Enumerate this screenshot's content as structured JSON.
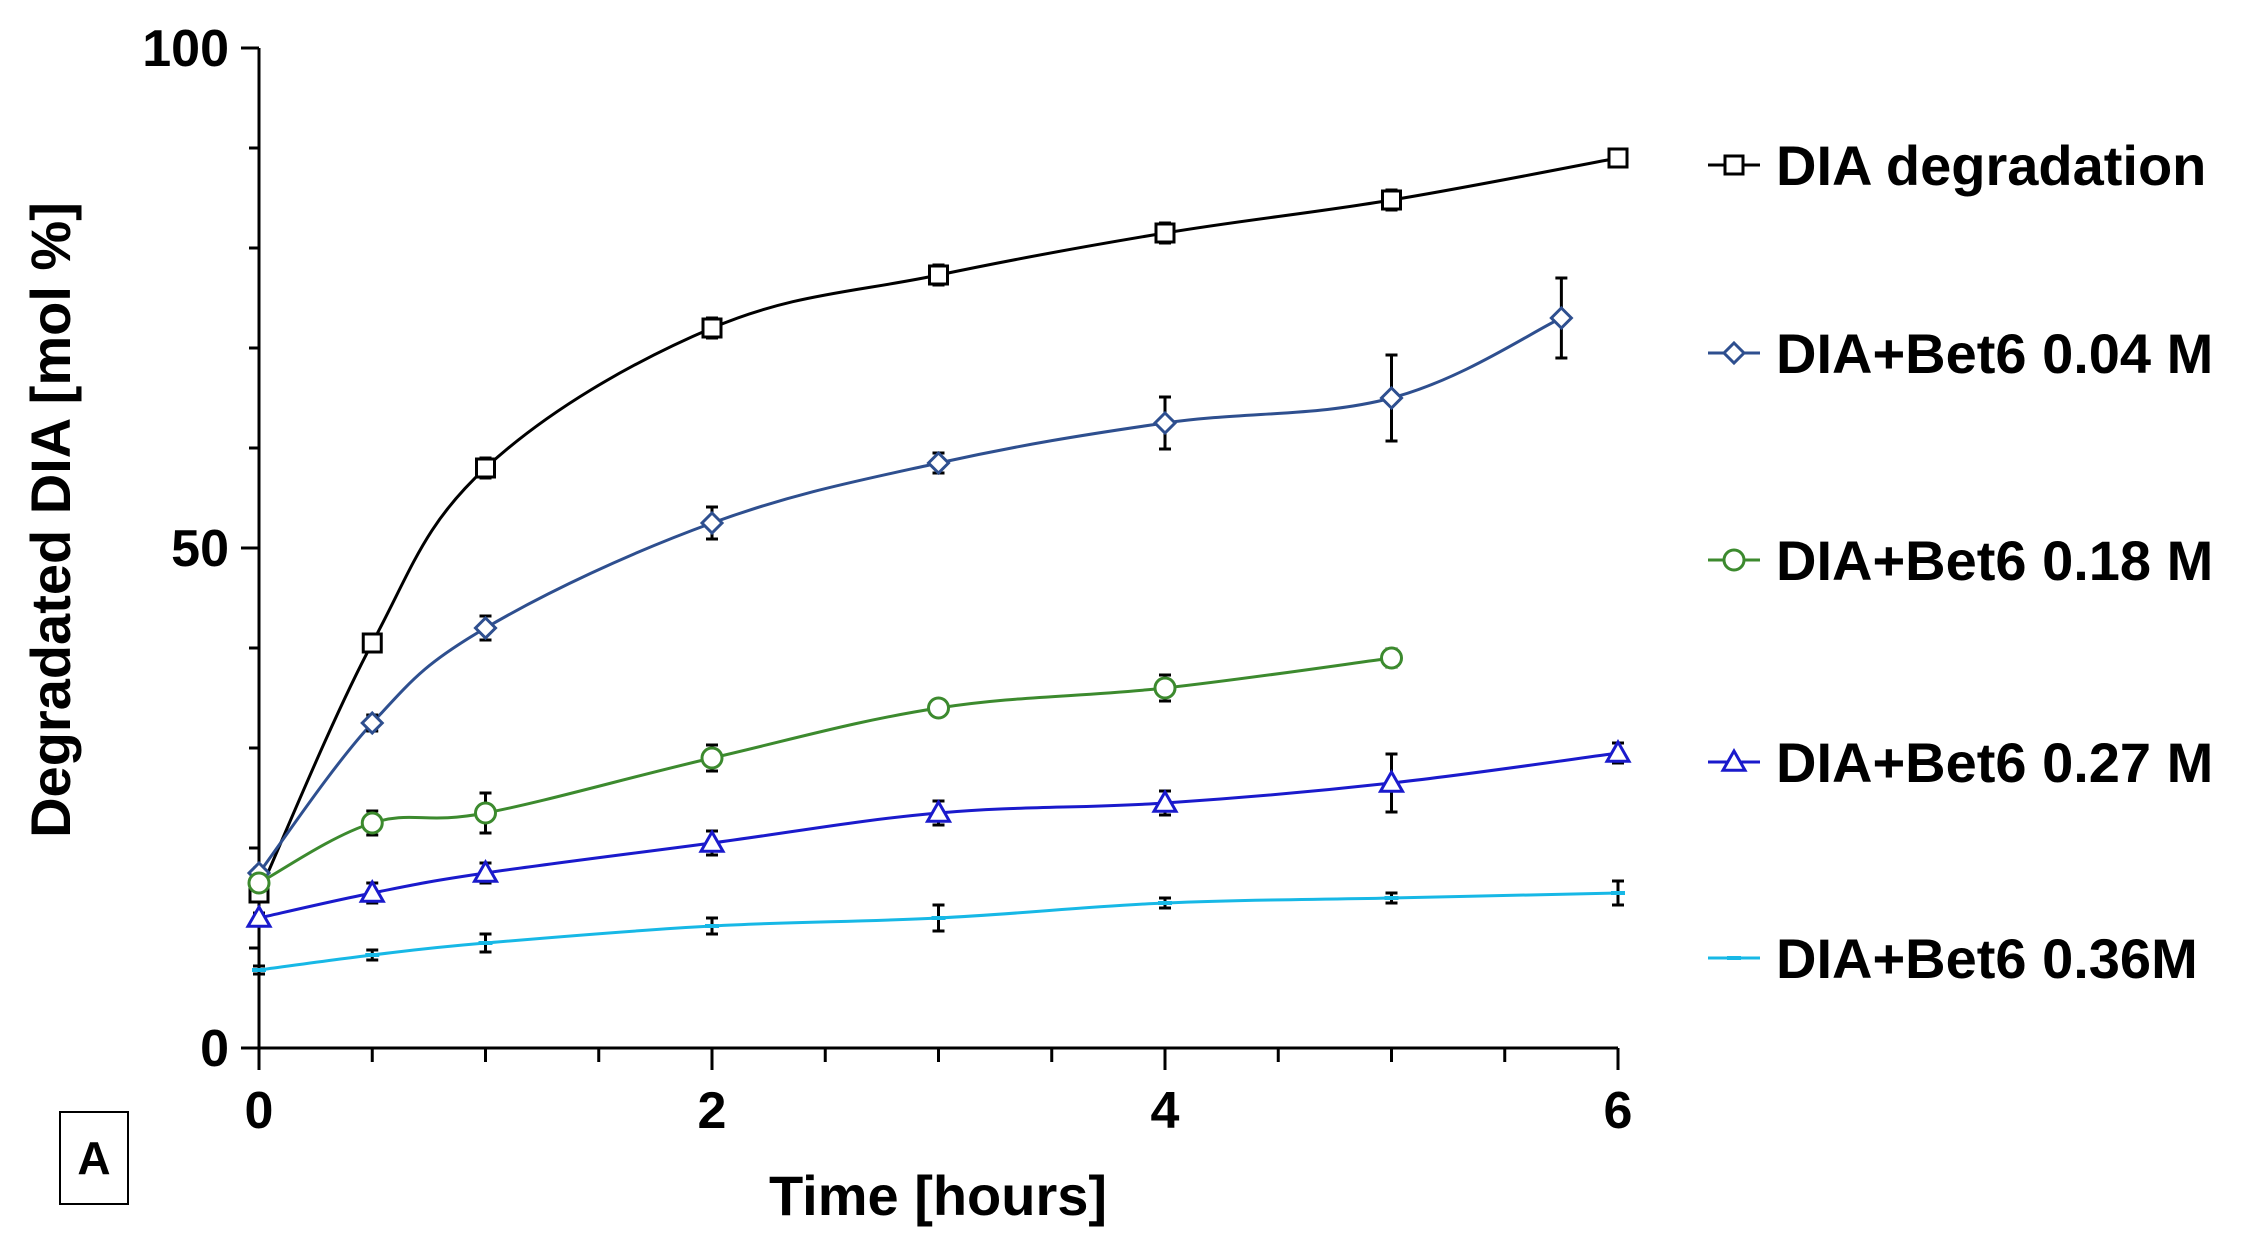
{
  "chart_data": {
    "type": "line",
    "title": "",
    "xlabel": "Time [hours]",
    "ylabel": "Degradated DIA [mol %]",
    "xlim": [
      0,
      6
    ],
    "ylim": [
      0,
      100
    ],
    "x_ticks": [
      "0",
      "2",
      "4",
      "6"
    ],
    "y_ticks": [
      "0",
      "50",
      "100"
    ],
    "panel_label": "A",
    "legend_position": "right",
    "series": [
      {
        "name": "DIA degradation",
        "color": "#000000",
        "marker": "square",
        "x": [
          0,
          0.5,
          1,
          2,
          3,
          4,
          5,
          6
        ],
        "y": [
          15.5,
          40.5,
          58.0,
          72.0,
          77.3,
          81.5,
          84.8,
          89.0
        ],
        "error": [
          0.5,
          0.8,
          1.0,
          1.0,
          1.0,
          1.0,
          1.0,
          0.8
        ]
      },
      {
        "name": "DIA+Bet6 0.04 M",
        "color": "#2e4f8f",
        "marker": "diamond",
        "x": [
          0,
          0.5,
          1,
          2,
          3,
          4,
          5,
          5.75
        ],
        "y": [
          17.5,
          32.5,
          42.0,
          52.5,
          58.5,
          62.5,
          65.0,
          73.0
        ],
        "error": [
          0.5,
          0.8,
          1.2,
          1.6,
          1.0,
          2.6,
          4.3,
          4.0
        ]
      },
      {
        "name": "DIA+Bet6 0.18 M",
        "color": "#3c8a2e",
        "marker": "circle",
        "x": [
          0,
          0.5,
          1,
          2,
          3,
          4,
          5
        ],
        "y": [
          16.5,
          22.5,
          23.5,
          29.0,
          34.0,
          36.0,
          39.0
        ],
        "error": [
          0.6,
          1.2,
          2.0,
          1.3,
          0.8,
          1.3,
          0.9
        ]
      },
      {
        "name": "DIA+Bet6 0.27 M",
        "color": "#1a1acc",
        "marker": "triangle",
        "x": [
          0,
          0.5,
          1,
          2,
          3,
          4,
          5,
          6
        ],
        "y": [
          13.0,
          15.5,
          17.5,
          20.5,
          23.5,
          24.5,
          26.5,
          29.5
        ],
        "error": [
          0.5,
          1.0,
          1.0,
          1.2,
          1.2,
          1.2,
          2.9,
          1.0
        ]
      },
      {
        "name": "DIA+Bet6 0.36M",
        "color": "#17b8e6",
        "marker": "dash",
        "x": [
          0,
          0.5,
          1,
          2,
          3,
          4,
          5,
          6
        ],
        "y": [
          7.8,
          9.3,
          10.5,
          12.2,
          13.0,
          14.5,
          15.0,
          15.5
        ],
        "error": [
          0.4,
          0.5,
          0.9,
          0.8,
          1.3,
          0.5,
          0.5,
          1.2
        ]
      }
    ]
  }
}
